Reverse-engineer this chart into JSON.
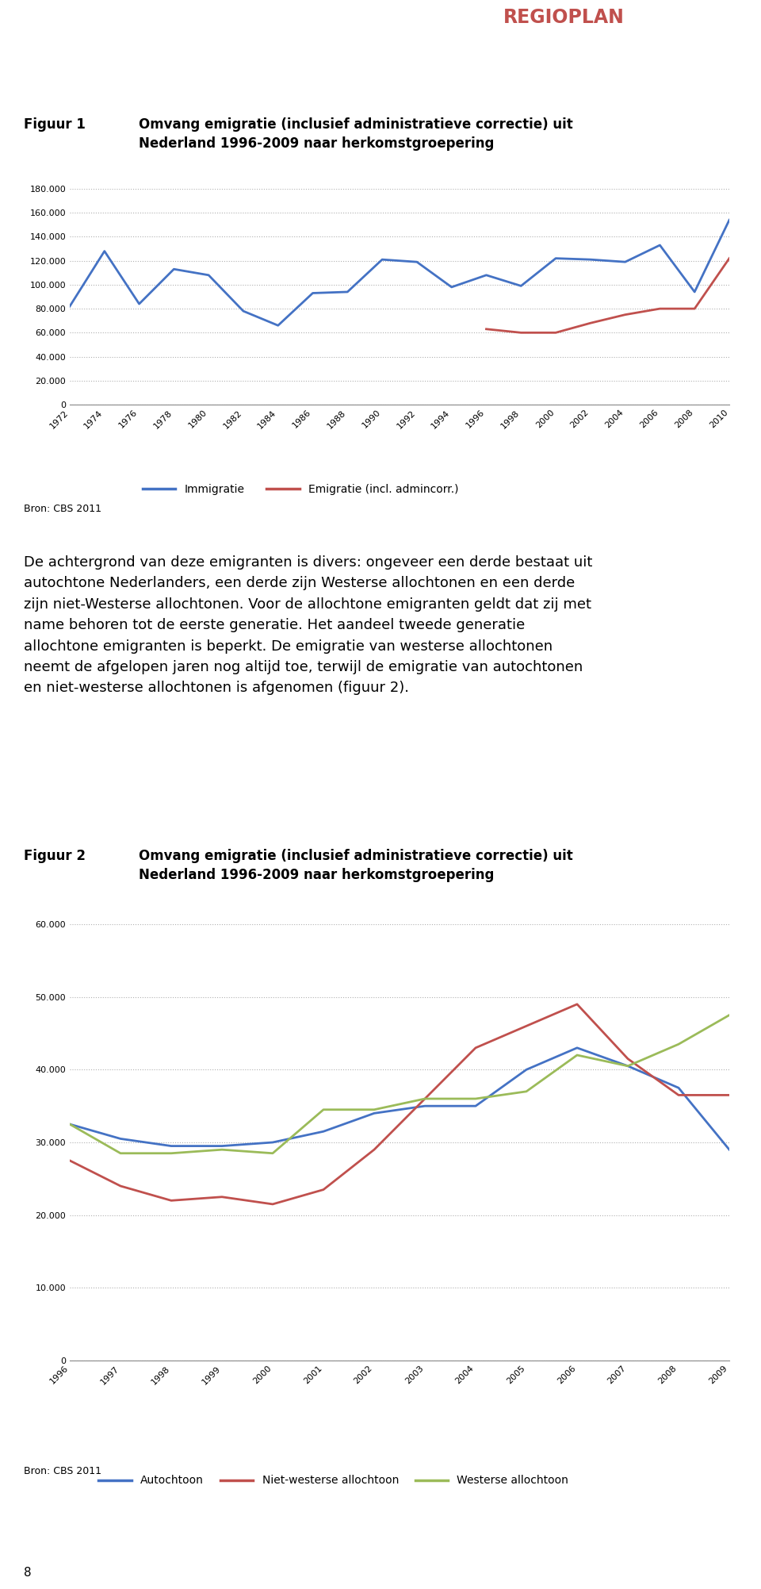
{
  "fig1": {
    "title_label": "Figuur 1",
    "title_text": "Omvang emigratie (inclusief administratieve correctie) uit\nNederland 1996-2009 naar herkomstgroepering",
    "years": [
      1972,
      1974,
      1976,
      1978,
      1980,
      1982,
      1984,
      1986,
      1988,
      1990,
      1992,
      1994,
      1996,
      1998,
      2000,
      2002,
      2004,
      2006,
      2008,
      2010
    ],
    "immigratie": [
      82000,
      128000,
      84000,
      113000,
      108000,
      78000,
      66000,
      93000,
      94000,
      121000,
      119000,
      98000,
      108000,
      99000,
      122000,
      121000,
      119000,
      133000,
      94000,
      154000
    ],
    "emigratie": [
      null,
      null,
      null,
      null,
      null,
      null,
      null,
      null,
      null,
      null,
      null,
      null,
      63000,
      60000,
      60000,
      68000,
      75000,
      80000,
      80000,
      122000
    ],
    "immigratie_color": "#4472C4",
    "emigratie_color": "#C0504D",
    "ylim": [
      0,
      180000
    ],
    "yticks": [
      0,
      20000,
      40000,
      60000,
      80000,
      100000,
      120000,
      140000,
      160000,
      180000
    ],
    "legend_immigratie": "Immigratie",
    "legend_emigratie": "Emigratie (incl. admincorr.)",
    "source": "Bron: CBS 2011"
  },
  "fig2": {
    "title_label": "Figuur 2",
    "title_text": "Omvang emigratie (inclusief administratieve correctie) uit\nNederland 1996-2009 naar herkomstgroepering",
    "years": [
      1996,
      1997,
      1998,
      1999,
      2000,
      2001,
      2002,
      2003,
      2004,
      2005,
      2006,
      2007,
      2008,
      2009
    ],
    "autochtoon": [
      32500,
      30500,
      29500,
      29500,
      30000,
      31500,
      34000,
      35000,
      35000,
      40000,
      43000,
      40500,
      37500,
      29000
    ],
    "niet_westers": [
      27500,
      24000,
      22000,
      22500,
      21500,
      23500,
      29000,
      36000,
      43000,
      46000,
      49000,
      41500,
      36500,
      36500
    ],
    "westers": [
      32500,
      28500,
      28500,
      29000,
      28500,
      34500,
      34500,
      36000,
      36000,
      37000,
      42000,
      40500,
      43500,
      47500
    ],
    "autochtoon_color": "#4472C4",
    "niet_westers_color": "#C0504D",
    "westers_color": "#9BBB59",
    "ylim": [
      0,
      60000
    ],
    "yticks": [
      0,
      10000,
      20000,
      30000,
      40000,
      50000,
      60000
    ],
    "legend_autochtoon": "Autochtoon",
    "legend_niet_westers": "Niet-westerse allochtoon",
    "legend_westers": "Westerse allochtoon",
    "source": "Bron: CBS 2011"
  },
  "paragraph_lines": [
    "De achtergrond van deze emigranten is divers: ongeveer een derde bestaat uit",
    "autochtone Nederlanders, een derde zijn Westerse allochtonen en een derde",
    "zijn niet-Westerse allochtonen. Voor de allochtone emigranten geldt dat zij met",
    "name behoren tot de eerste generatie. Het aandeel tweede generatie",
    "allochtone emigranten is beperkt. De emigratie van westerse allochtonen",
    "neemt de afgelopen jaren nog altijd toe, terwijl de emigratie van autochtonen",
    "en niet-westerse allochtonen is afgenomen (figuur 2)."
  ],
  "page_number": "8",
  "background_color": "#FFFFFF",
  "grid_color": "#B0B0B0"
}
